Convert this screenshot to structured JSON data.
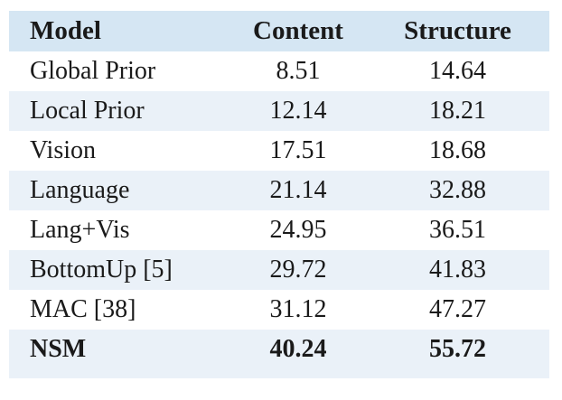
{
  "table": {
    "columns": [
      "Model",
      "Content",
      "Structure"
    ],
    "rows": [
      {
        "model": "Global Prior",
        "content": "8.51",
        "structure": "14.64"
      },
      {
        "model": "Local Prior",
        "content": "12.14",
        "structure": "18.21"
      },
      {
        "model": "Vision",
        "content": "17.51",
        "structure": "18.68"
      },
      {
        "model": "Language",
        "content": "21.14",
        "structure": "32.88"
      },
      {
        "model": "Lang+Vis",
        "content": "24.95",
        "structure": "36.51"
      },
      {
        "model": "BottomUp [5]",
        "content": "29.72",
        "structure": "41.83"
      },
      {
        "model": "MAC [38]",
        "content": "31.12",
        "structure": "47.27"
      },
      {
        "model": "NSM",
        "content": "40.24",
        "structure": "55.72"
      }
    ]
  },
  "chart_data": {
    "type": "table",
    "columns": [
      "Model",
      "Content",
      "Structure"
    ],
    "rows": [
      [
        "Global Prior",
        8.51,
        14.64
      ],
      [
        "Local Prior",
        12.14,
        18.21
      ],
      [
        "Vision",
        17.51,
        18.68
      ],
      [
        "Language",
        21.14,
        32.88
      ],
      [
        "Lang+Vis",
        24.95,
        36.51
      ],
      [
        "BottomUp [5]",
        29.72,
        41.83
      ],
      [
        "MAC [38]",
        31.12,
        47.27
      ],
      [
        "NSM",
        40.24,
        55.72
      ]
    ],
    "notes": "Bold emphasis on header row and NSM row; light blue striped rows"
  },
  "colors": {
    "header_bg": "#d5e6f3",
    "stripe_bg": "#eaf1f8",
    "text": "#1a1a1a",
    "page_bg": "#ffffff"
  }
}
